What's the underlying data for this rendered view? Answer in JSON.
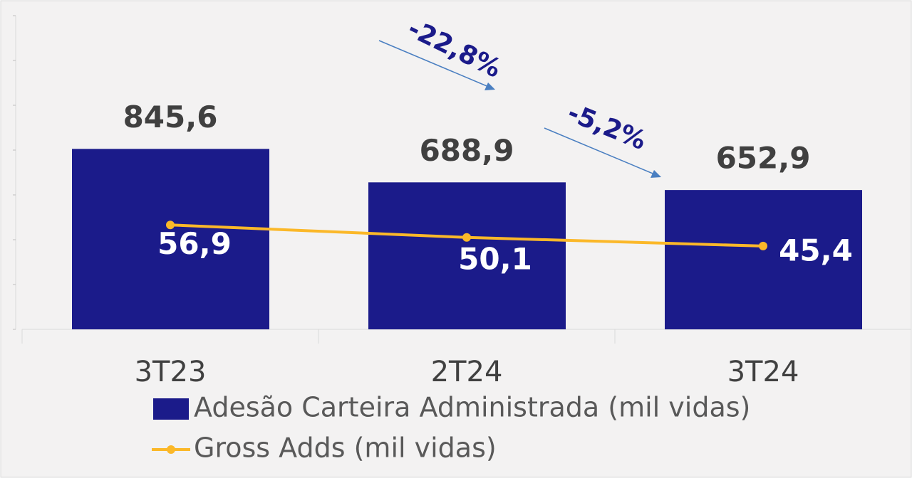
{
  "chart_data": {
    "type": "bar_line",
    "categories": [
      "3T23",
      "2T24",
      "3T24"
    ],
    "series": [
      {
        "name": "Adesão Carteira Administrada (mil vidas)",
        "type": "bar",
        "color": "#1b1b8a",
        "values": [
          845.6,
          688.9,
          652.9
        ],
        "value_labels": [
          "845,6",
          "688,9",
          "652,9"
        ]
      },
      {
        "name": "Gross Adds (mil vidas)",
        "type": "line",
        "axis": "y2",
        "color": "#fbb829",
        "values": [
          56.9,
          50.1,
          45.4
        ],
        "value_labels": [
          "56,9",
          "50,1",
          "45,4"
        ]
      }
    ],
    "annotations": [
      "-22,8%",
      "-5,2%"
    ],
    "ylim": [
      0,
      1470
    ],
    "yticks": [
      0,
      210,
      420,
      630,
      840,
      1050,
      1260,
      1470
    ],
    "y2lim": [
      0,
      171
    ],
    "legend": "bottom"
  }
}
